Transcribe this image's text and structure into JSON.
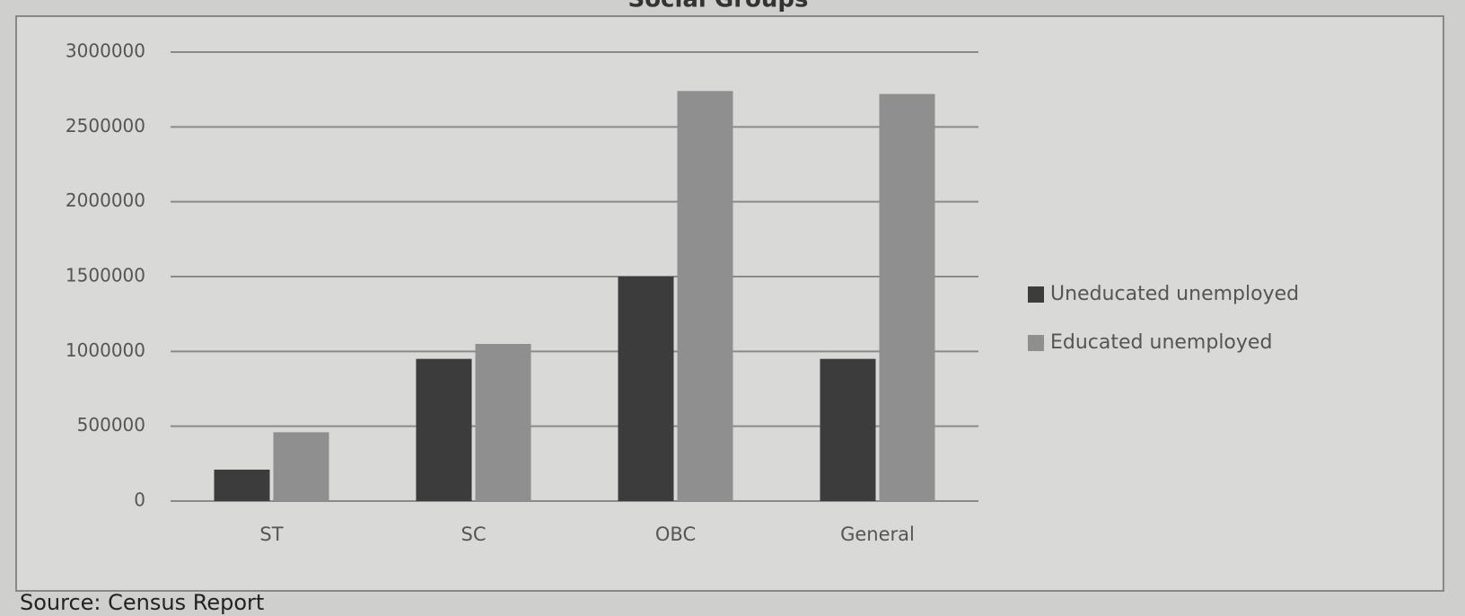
{
  "chart_data": {
    "type": "bar",
    "title": "Social Groups",
    "categories": [
      "ST",
      "SC",
      "OBC",
      "General"
    ],
    "series": [
      {
        "name": "Uneducated unemployed",
        "color": "#3c3c3c",
        "values": [
          210000,
          950000,
          1500000,
          950000
        ]
      },
      {
        "name": "Educated unemployed",
        "color": "#8f8f8f",
        "values": [
          460000,
          1050000,
          2740000,
          2720000
        ]
      }
    ],
    "ylim": [
      0,
      3000000
    ],
    "yticks": [
      0,
      500000,
      1000000,
      1500000,
      2000000,
      2500000,
      3000000
    ],
    "grid": true,
    "legend": "right",
    "source": "Source: Census Report"
  }
}
